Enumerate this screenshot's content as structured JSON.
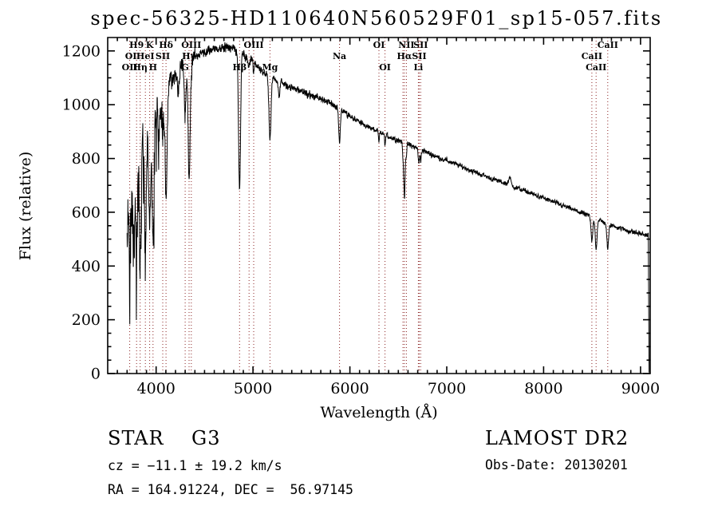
{
  "title": "spec-56325-HD110640N560529F01_sp15-057.fits",
  "annotations": {
    "class_line": "STAR    G3",
    "cz_line": "cz = −11.1 ± 19.2 km/s",
    "radec_line": "RA = 164.91224, DEC =  56.97145",
    "survey": "LAMOST DR2",
    "obs_date": "Obs-Date: 20130201"
  },
  "chart_data": {
    "type": "line",
    "title": "spec-56325-HD110640N560529F01_sp15-057.fits",
    "xlabel": "Wavelength (Å)",
    "ylabel": "Flux (relative)",
    "xlim": [
      3500,
      9100
    ],
    "ylim": [
      0,
      1250
    ],
    "xticks": [
      4000,
      5000,
      6000,
      7000,
      8000,
      9000
    ],
    "yticks": [
      0,
      200,
      400,
      600,
      800,
      1000,
      1200
    ],
    "x_minor": 100,
    "y_minor": 50,
    "grid": false,
    "legend": "none",
    "spectrum_color": "#000000",
    "marker_color": "#8B2323",
    "data_range": [
      3700,
      9080
    ],
    "continuum": {
      "wavelength": [
        3700,
        3750,
        3800,
        3850,
        3900,
        3950,
        4000,
        4050,
        4100,
        4150,
        4200,
        4300,
        4400,
        4500,
        4600,
        4700,
        4800,
        4900,
        5000,
        5100,
        5200,
        5300,
        5400,
        5500,
        5600,
        5700,
        5800,
        5900,
        6000,
        6100,
        6200,
        6300,
        6400,
        6500,
        6600,
        6700,
        6800,
        6900,
        7000,
        7100,
        7200,
        7300,
        7400,
        7500,
        7600,
        7700,
        7800,
        7900,
        8000,
        8100,
        8200,
        8300,
        8400,
        8500,
        8600,
        8700,
        8800,
        8900,
        9000,
        9080
      ],
      "flux": [
        560,
        660,
        730,
        790,
        840,
        890,
        950,
        1000,
        1050,
        1080,
        1110,
        1150,
        1180,
        1195,
        1205,
        1215,
        1210,
        1185,
        1155,
        1125,
        1100,
        1080,
        1065,
        1050,
        1035,
        1020,
        1005,
        985,
        960,
        935,
        915,
        898,
        882,
        868,
        852,
        838,
        822,
        806,
        792,
        778,
        763,
        748,
        734,
        720,
        708,
        694,
        680,
        666,
        652,
        638,
        624,
        610,
        596,
        582,
        566,
        552,
        540,
        528,
        520,
        514
      ]
    },
    "absorption_lines": [
      {
        "center": 3727,
        "depth": 260,
        "sigma": 6
      },
      {
        "center": 3770,
        "depth": 210,
        "sigma": 7
      },
      {
        "center": 3798,
        "depth": 300,
        "sigma": 8
      },
      {
        "center": 3835,
        "depth": 330,
        "sigma": 8
      },
      {
        "center": 3889,
        "depth": 340,
        "sigma": 8
      },
      {
        "center": 3933,
        "depth": 380,
        "sigma": 9
      },
      {
        "center": 3968,
        "depth": 390,
        "sigma": 9
      },
      {
        "center": 4026,
        "depth": 120,
        "sigma": 6
      },
      {
        "center": 4068,
        "depth": 140,
        "sigma": 6
      },
      {
        "center": 4102,
        "depth": 430,
        "sigma": 10
      },
      {
        "center": 4227,
        "depth": 100,
        "sigma": 6
      },
      {
        "center": 4300,
        "depth": 180,
        "sigma": 10
      },
      {
        "center": 4340,
        "depth": 460,
        "sigma": 10
      },
      {
        "center": 4363,
        "depth": 60,
        "sigma": 5
      },
      {
        "center": 4861,
        "depth": 510,
        "sigma": 10
      },
      {
        "center": 4959,
        "depth": 35,
        "sigma": 5
      },
      {
        "center": 5007,
        "depth": 40,
        "sigma": 5
      },
      {
        "center": 5175,
        "depth": 230,
        "sigma": 11
      },
      {
        "center": 5270,
        "depth": 60,
        "sigma": 8
      },
      {
        "center": 5893,
        "depth": 130,
        "sigma": 8
      },
      {
        "center": 6300,
        "depth": 40,
        "sigma": 5
      },
      {
        "center": 6363,
        "depth": 35,
        "sigma": 5
      },
      {
        "center": 6548,
        "depth": 50,
        "sigma": 5
      },
      {
        "center": 6563,
        "depth": 200,
        "sigma": 7
      },
      {
        "center": 6583,
        "depth": 45,
        "sigma": 5
      },
      {
        "center": 6707,
        "depth": 30,
        "sigma": 5
      },
      {
        "center": 6716,
        "depth": 40,
        "sigma": 5
      },
      {
        "center": 6731,
        "depth": 40,
        "sigma": 5
      },
      {
        "center": 8498,
        "depth": 90,
        "sigma": 9
      },
      {
        "center": 8542,
        "depth": 110,
        "sigma": 9
      },
      {
        "center": 8662,
        "depth": 95,
        "sigma": 9
      }
    ],
    "emission_features": [
      {
        "center": 7650,
        "height": 28,
        "sigma": 12
      }
    ],
    "noise_profile": [
      {
        "upto": 3900,
        "amp": 150
      },
      {
        "upto": 4100,
        "amp": 85
      },
      {
        "upto": 4400,
        "amp": 40
      },
      {
        "upto": 5000,
        "amp": 20
      },
      {
        "upto": 6000,
        "amp": 15
      },
      {
        "upto": 7000,
        "amp": 11
      },
      {
        "upto": 9100,
        "amp": 10
      }
    ],
    "dotted_lines": [
      3727,
      3798,
      3835,
      3889,
      3933,
      3968,
      4068,
      4102,
      4300,
      4340,
      4363,
      4861,
      4959,
      5007,
      5175,
      5893,
      6300,
      6363,
      6548,
      6563,
      6583,
      6707,
      6716,
      6731,
      8498,
      8542,
      8662
    ],
    "line_markers": [
      {
        "label": "H9",
        "wavelength": 3798,
        "row": 1
      },
      {
        "label": "K",
        "wavelength": 3933,
        "row": 1
      },
      {
        "label": "Hδ",
        "wavelength": 4102,
        "row": 1
      },
      {
        "label": "OIII",
        "wavelength": 4363,
        "row": 1
      },
      {
        "label": "OIII",
        "wavelength": 5007,
        "row": 1
      },
      {
        "label": "OI",
        "wavelength": 6300,
        "row": 1
      },
      {
        "label": "NII",
        "wavelength": 6583,
        "row": 1
      },
      {
        "label": "SII",
        "wavelength": 6731,
        "row": 1
      },
      {
        "label": "CaII",
        "wavelength": 8662,
        "row": 1
      },
      {
        "label": "OI",
        "wavelength": 3740,
        "row": 2
      },
      {
        "label": "HeI",
        "wavelength": 3889,
        "row": 2
      },
      {
        "label": "SII",
        "wavelength": 4068,
        "row": 2
      },
      {
        "label": "Hγ",
        "wavelength": 4340,
        "row": 2
      },
      {
        "label": "Na",
        "wavelength": 5893,
        "row": 2
      },
      {
        "label": "Hα",
        "wavelength": 6563,
        "row": 2
      },
      {
        "label": "SII",
        "wavelength": 6716,
        "row": 2
      },
      {
        "label": "CaII",
        "wavelength": 8498,
        "row": 2
      },
      {
        "label": "OII",
        "wavelength": 3727,
        "row": 3
      },
      {
        "label": "Hη",
        "wavelength": 3835,
        "row": 3
      },
      {
        "label": "H",
        "wavelength": 3968,
        "row": 3
      },
      {
        "label": "G",
        "wavelength": 4300,
        "row": 3
      },
      {
        "label": "Hβ",
        "wavelength": 4861,
        "row": 3
      },
      {
        "label": "Mg",
        "wavelength": 5175,
        "row": 3
      },
      {
        "label": "OI",
        "wavelength": 6363,
        "row": 3
      },
      {
        "label": "Li",
        "wavelength": 6707,
        "row": 3
      },
      {
        "label": "CaII",
        "wavelength": 8542,
        "row": 3
      }
    ]
  }
}
